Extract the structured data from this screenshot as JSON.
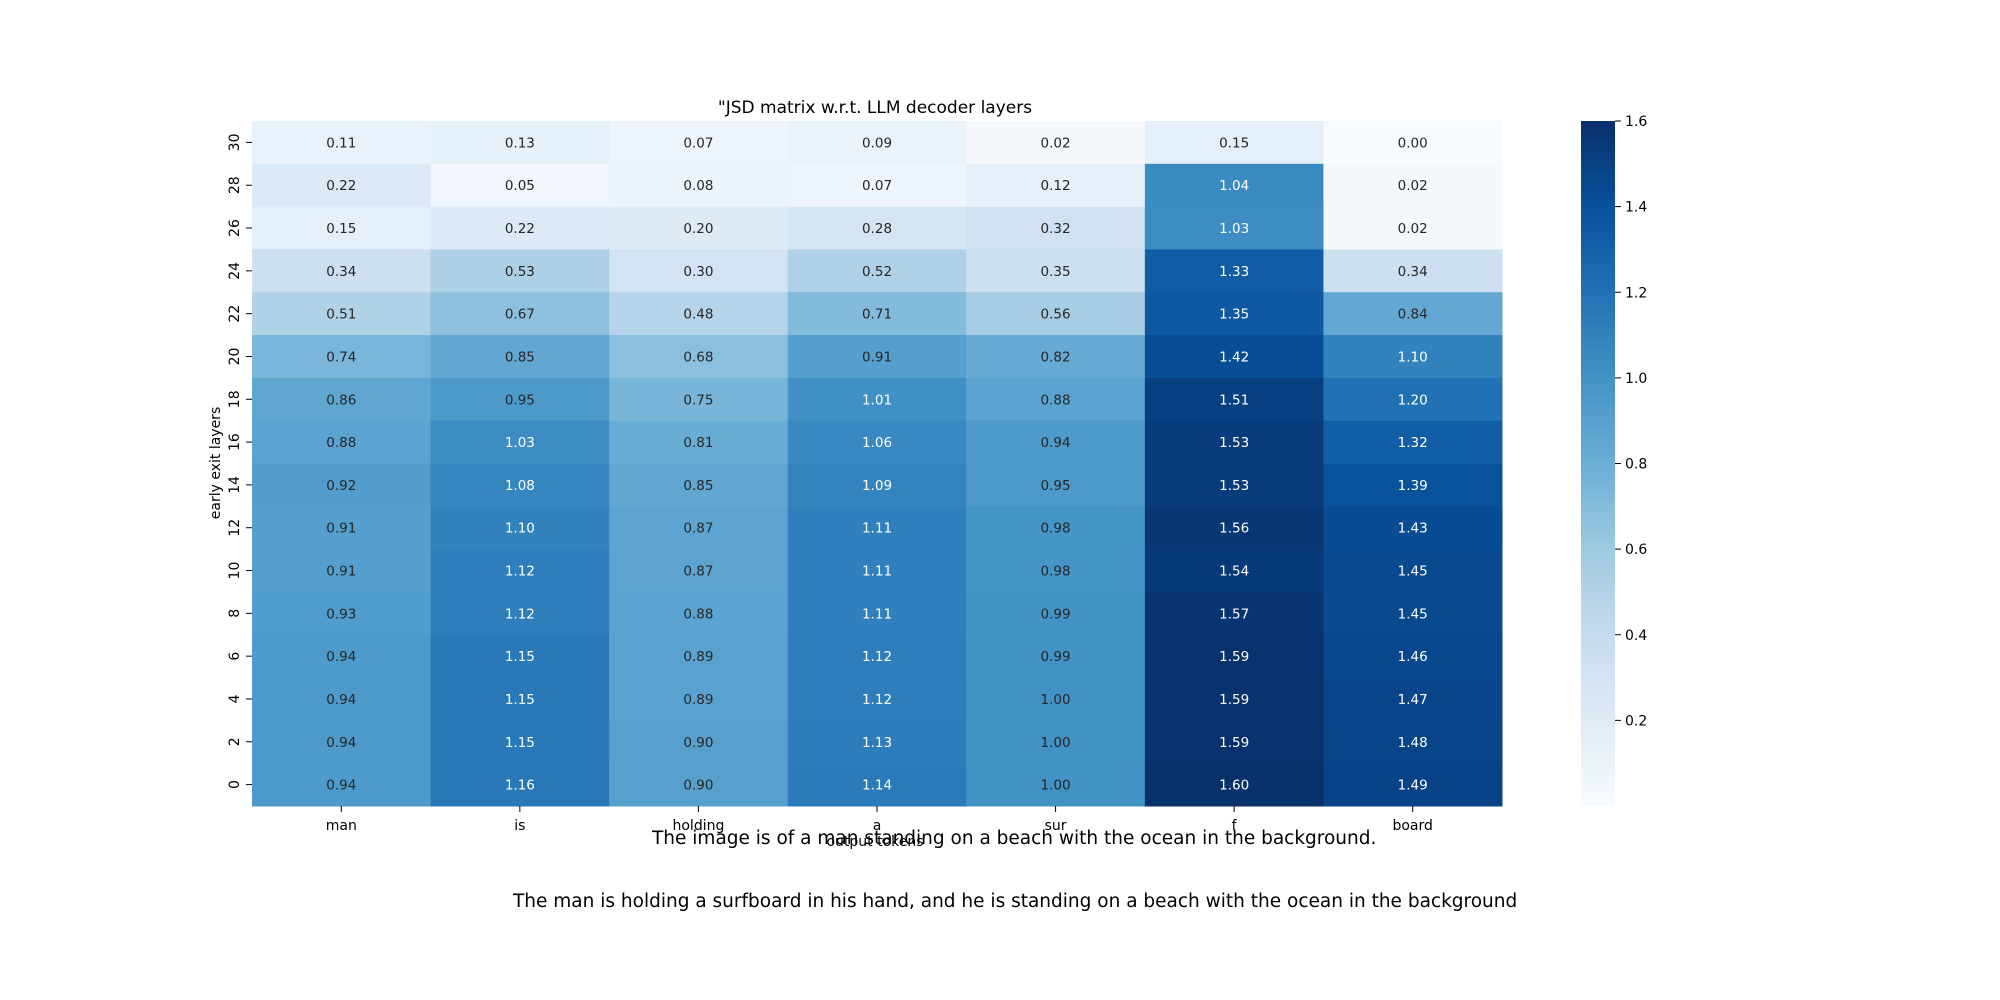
{
  "chart_data": {
    "type": "heatmap",
    "title": "\"JSD matrix w.r.t. LLM decoder layers",
    "xlabel": "output tokens",
    "ylabel": "early exit layers",
    "x_categories": [
      "man",
      "is",
      "holding",
      "a",
      "sur",
      "f",
      "board"
    ],
    "y_categories": [
      "30",
      "28",
      "26",
      "24",
      "22",
      "20",
      "18",
      "16",
      "14",
      "12",
      "10",
      "8",
      "6",
      "4",
      "2",
      "0"
    ],
    "values": [
      [
        0.11,
        0.13,
        0.07,
        0.09,
        0.02,
        0.15,
        0.0
      ],
      [
        0.22,
        0.05,
        0.08,
        0.07,
        0.12,
        1.04,
        0.02
      ],
      [
        0.15,
        0.22,
        0.2,
        0.28,
        0.32,
        1.03,
        0.02
      ],
      [
        0.34,
        0.53,
        0.3,
        0.52,
        0.35,
        1.33,
        0.34
      ],
      [
        0.51,
        0.67,
        0.48,
        0.71,
        0.56,
        1.35,
        0.84
      ],
      [
        0.74,
        0.85,
        0.68,
        0.91,
        0.82,
        1.42,
        1.1
      ],
      [
        0.86,
        0.95,
        0.75,
        1.01,
        0.88,
        1.51,
        1.2
      ],
      [
        0.88,
        1.03,
        0.81,
        1.06,
        0.94,
        1.53,
        1.32
      ],
      [
        0.92,
        1.08,
        0.85,
        1.09,
        0.95,
        1.53,
        1.39
      ],
      [
        0.91,
        1.1,
        0.87,
        1.11,
        0.98,
        1.56,
        1.43
      ],
      [
        0.91,
        1.12,
        0.87,
        1.11,
        0.98,
        1.54,
        1.45
      ],
      [
        0.93,
        1.12,
        0.88,
        1.11,
        0.99,
        1.57,
        1.45
      ],
      [
        0.94,
        1.15,
        0.89,
        1.12,
        0.99,
        1.59,
        1.46
      ],
      [
        0.94,
        1.15,
        0.89,
        1.12,
        1.0,
        1.59,
        1.47
      ],
      [
        0.94,
        1.15,
        0.9,
        1.13,
        1.0,
        1.59,
        1.48
      ],
      [
        0.94,
        1.16,
        0.9,
        1.14,
        1.0,
        1.6,
        1.49
      ]
    ],
    "value_range": [
      0.0,
      1.6
    ],
    "colorbar_ticks": [
      "0.2",
      "0.4",
      "0.6",
      "0.8",
      "1.0",
      "1.2",
      "1.4",
      "1.6"
    ],
    "colormap": "Blues",
    "colormap_stops": [
      "#f7fbff",
      "#deebf7",
      "#c6dbef",
      "#9ecae1",
      "#6baed6",
      "#4292c6",
      "#2171b5",
      "#08519c",
      "#08306b"
    ],
    "annotation_light_color": "#ffffff",
    "annotation_dark_color": "#262626"
  },
  "captions": {
    "line1": "The image is of a man standing on a beach with the ocean in the background.",
    "line2": "The man is holding a surfboard in his hand, and he is standing on a beach with the ocean in the background"
  }
}
